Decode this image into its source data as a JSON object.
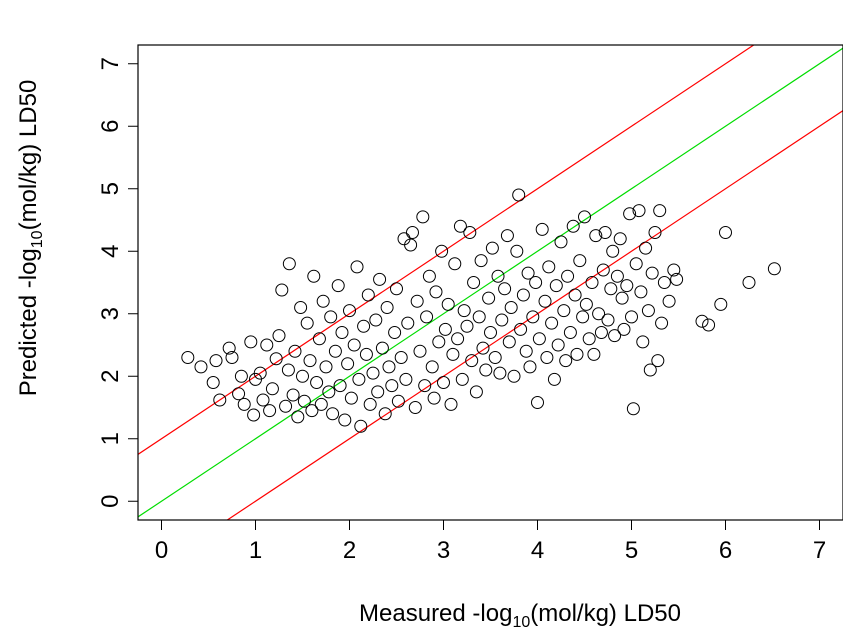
{
  "chart_data": {
    "type": "scatter",
    "title": "",
    "xlabel": {
      "pre": "Measured -log",
      "sub": "10",
      "post": "(mol/kg) LD50"
    },
    "ylabel": {
      "pre": "Predicted -log",
      "sub": "10",
      "post": "(mol/kg) LD50"
    },
    "xlim": [
      -0.25,
      7.25
    ],
    "ylim": [
      -0.3,
      7.3
    ],
    "x_ticks": [
      "0",
      "1",
      "2",
      "3",
      "4",
      "5",
      "6",
      "7"
    ],
    "y_ticks": [
      "0",
      "1",
      "2",
      "3",
      "4",
      "5",
      "6",
      "7"
    ],
    "grid": false,
    "marker": "open-circle",
    "reference_lines": [
      {
        "name": "y = x",
        "slope": 1,
        "intercept": 0,
        "color": "#00dd00"
      },
      {
        "name": "y = x + 1",
        "slope": 1,
        "intercept": 1,
        "color": "#ff0000"
      },
      {
        "name": "y = x - 1",
        "slope": 1,
        "intercept": -1,
        "color": "#ff0000"
      }
    ],
    "points": [
      [
        0.28,
        2.3
      ],
      [
        0.42,
        2.15
      ],
      [
        0.55,
        1.9
      ],
      [
        0.58,
        2.25
      ],
      [
        0.62,
        1.62
      ],
      [
        0.72,
        2.45
      ],
      [
        0.75,
        2.3
      ],
      [
        0.82,
        1.72
      ],
      [
        0.85,
        2.0
      ],
      [
        0.88,
        1.55
      ],
      [
        0.95,
        2.55
      ],
      [
        0.98,
        1.38
      ],
      [
        1.0,
        1.95
      ],
      [
        1.05,
        2.05
      ],
      [
        1.08,
        1.62
      ],
      [
        1.12,
        2.5
      ],
      [
        1.15,
        1.45
      ],
      [
        1.18,
        1.8
      ],
      [
        1.22,
        2.28
      ],
      [
        1.25,
        2.65
      ],
      [
        1.28,
        3.38
      ],
      [
        1.32,
        1.52
      ],
      [
        1.35,
        2.1
      ],
      [
        1.36,
        3.8
      ],
      [
        1.4,
        1.7
      ],
      [
        1.42,
        2.4
      ],
      [
        1.45,
        1.35
      ],
      [
        1.48,
        3.1
      ],
      [
        1.5,
        2.0
      ],
      [
        1.52,
        1.6
      ],
      [
        1.55,
        2.85
      ],
      [
        1.58,
        2.25
      ],
      [
        1.6,
        1.45
      ],
      [
        1.62,
        3.6
      ],
      [
        1.65,
        1.9
      ],
      [
        1.68,
        2.6
      ],
      [
        1.7,
        1.55
      ],
      [
        1.72,
        3.2
      ],
      [
        1.75,
        2.15
      ],
      [
        1.78,
        1.75
      ],
      [
        1.8,
        2.95
      ],
      [
        1.82,
        1.4
      ],
      [
        1.85,
        2.4
      ],
      [
        1.88,
        3.45
      ],
      [
        1.9,
        1.85
      ],
      [
        1.92,
        2.7
      ],
      [
        1.95,
        1.3
      ],
      [
        1.98,
        2.2
      ],
      [
        2.0,
        3.05
      ],
      [
        2.02,
        1.65
      ],
      [
        2.05,
        2.5
      ],
      [
        2.08,
        3.75
      ],
      [
        2.1,
        1.95
      ],
      [
        2.12,
        1.2
      ],
      [
        2.15,
        2.8
      ],
      [
        2.18,
        2.35
      ],
      [
        2.2,
        3.3
      ],
      [
        2.22,
        1.55
      ],
      [
        2.25,
        2.05
      ],
      [
        2.28,
        2.9
      ],
      [
        2.3,
        1.75
      ],
      [
        2.32,
        3.55
      ],
      [
        2.35,
        2.45
      ],
      [
        2.38,
        1.4
      ],
      [
        2.4,
        3.1
      ],
      [
        2.42,
        2.15
      ],
      [
        2.45,
        1.85
      ],
      [
        2.48,
        2.7
      ],
      [
        2.5,
        3.4
      ],
      [
        2.52,
        1.6
      ],
      [
        2.55,
        2.3
      ],
      [
        2.58,
        4.2
      ],
      [
        2.6,
        1.95
      ],
      [
        2.62,
        2.85
      ],
      [
        2.65,
        4.1
      ],
      [
        2.67,
        4.3
      ],
      [
        2.7,
        1.5
      ],
      [
        2.72,
        3.2
      ],
      [
        2.75,
        2.4
      ],
      [
        2.78,
        4.55
      ],
      [
        2.8,
        1.85
      ],
      [
        2.82,
        2.95
      ],
      [
        2.85,
        3.6
      ],
      [
        2.88,
        2.15
      ],
      [
        2.9,
        1.65
      ],
      [
        2.92,
        3.35
      ],
      [
        2.95,
        2.55
      ],
      [
        2.98,
        4.0
      ],
      [
        3.0,
        1.9
      ],
      [
        3.02,
        2.75
      ],
      [
        3.05,
        3.15
      ],
      [
        3.08,
        1.55
      ],
      [
        3.1,
        2.35
      ],
      [
        3.12,
        3.8
      ],
      [
        3.15,
        2.6
      ],
      [
        3.18,
        4.4
      ],
      [
        3.2,
        1.95
      ],
      [
        3.22,
        3.05
      ],
      [
        3.25,
        2.8
      ],
      [
        3.28,
        4.3
      ],
      [
        3.3,
        2.25
      ],
      [
        3.32,
        3.5
      ],
      [
        3.35,
        1.75
      ],
      [
        3.38,
        2.95
      ],
      [
        3.4,
        3.85
      ],
      [
        3.42,
        2.45
      ],
      [
        3.45,
        2.1
      ],
      [
        3.48,
        3.25
      ],
      [
        3.5,
        2.7
      ],
      [
        3.52,
        4.05
      ],
      [
        3.55,
        2.3
      ],
      [
        3.58,
        3.6
      ],
      [
        3.6,
        2.05
      ],
      [
        3.62,
        2.9
      ],
      [
        3.65,
        3.4
      ],
      [
        3.68,
        4.25
      ],
      [
        3.7,
        2.55
      ],
      [
        3.72,
        3.1
      ],
      [
        3.75,
        2.0
      ],
      [
        3.78,
        4.0
      ],
      [
        3.8,
        4.9
      ],
      [
        3.82,
        2.75
      ],
      [
        3.85,
        3.3
      ],
      [
        3.88,
        2.4
      ],
      [
        3.9,
        3.65
      ],
      [
        3.92,
        2.15
      ],
      [
        3.95,
        2.95
      ],
      [
        3.98,
        3.5
      ],
      [
        4.0,
        1.58
      ],
      [
        4.02,
        2.6
      ],
      [
        4.05,
        4.35
      ],
      [
        4.08,
        3.2
      ],
      [
        4.1,
        2.3
      ],
      [
        4.12,
        3.75
      ],
      [
        4.15,
        2.85
      ],
      [
        4.18,
        1.95
      ],
      [
        4.2,
        3.45
      ],
      [
        4.22,
        2.5
      ],
      [
        4.25,
        4.15
      ],
      [
        4.28,
        3.05
      ],
      [
        4.3,
        2.25
      ],
      [
        4.32,
        3.6
      ],
      [
        4.35,
        2.7
      ],
      [
        4.38,
        4.4
      ],
      [
        4.4,
        3.3
      ],
      [
        4.42,
        2.35
      ],
      [
        4.45,
        3.85
      ],
      [
        4.48,
        2.95
      ],
      [
        4.5,
        4.55
      ],
      [
        4.52,
        3.15
      ],
      [
        4.55,
        2.6
      ],
      [
        4.58,
        3.5
      ],
      [
        4.6,
        2.35
      ],
      [
        4.62,
        4.25
      ],
      [
        4.65,
        3.0
      ],
      [
        4.68,
        2.7
      ],
      [
        4.7,
        3.7
      ],
      [
        4.72,
        4.3
      ],
      [
        4.75,
        2.9
      ],
      [
        4.78,
        3.4
      ],
      [
        4.8,
        4.0
      ],
      [
        4.82,
        2.65
      ],
      [
        4.85,
        3.6
      ],
      [
        4.88,
        4.2
      ],
      [
        4.9,
        3.25
      ],
      [
        4.92,
        2.75
      ],
      [
        4.95,
        3.45
      ],
      [
        4.98,
        4.6
      ],
      [
        5.0,
        2.95
      ],
      [
        5.02,
        1.48
      ],
      [
        5.05,
        3.8
      ],
      [
        5.08,
        4.65
      ],
      [
        5.1,
        3.35
      ],
      [
        5.12,
        2.55
      ],
      [
        5.15,
        4.05
      ],
      [
        5.18,
        3.05
      ],
      [
        5.2,
        2.1
      ],
      [
        5.22,
        3.65
      ],
      [
        5.25,
        4.3
      ],
      [
        5.28,
        2.25
      ],
      [
        5.3,
        4.65
      ],
      [
        5.32,
        2.85
      ],
      [
        5.35,
        3.5
      ],
      [
        5.4,
        3.2
      ],
      [
        5.45,
        3.7
      ],
      [
        5.48,
        3.55
      ],
      [
        5.75,
        2.88
      ],
      [
        5.82,
        2.82
      ],
      [
        5.95,
        3.15
      ],
      [
        6.0,
        4.3
      ],
      [
        6.25,
        3.5
      ],
      [
        6.52,
        3.72
      ]
    ]
  }
}
